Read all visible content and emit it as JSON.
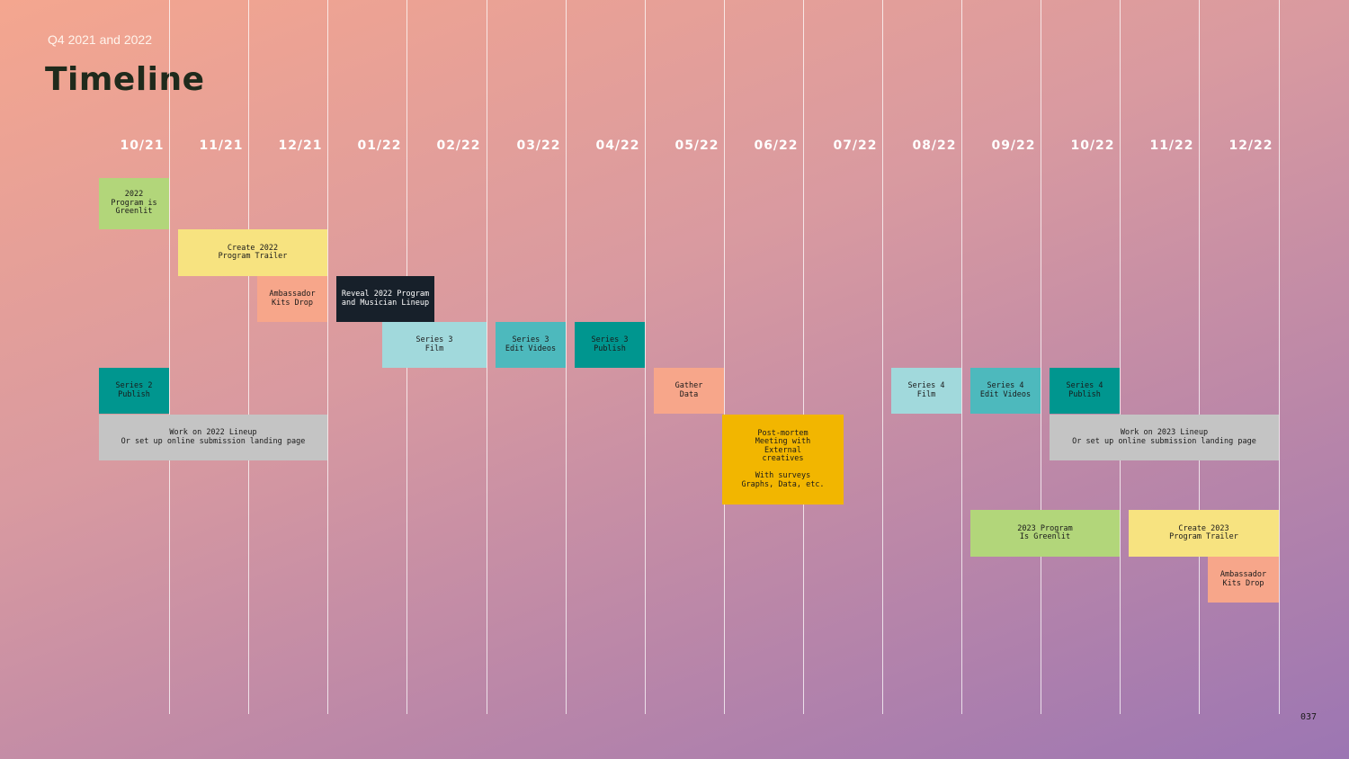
{
  "header": {
    "subtitle": "Q4 2021 and 2022",
    "title": "Timeline"
  },
  "months": [
    "10/21",
    "11/21",
    "12/21",
    "01/22",
    "02/22",
    "03/22",
    "04/22",
    "05/22",
    "06/22",
    "07/22",
    "08/22",
    "09/22",
    "10/22",
    "11/22",
    "12/22"
  ],
  "tasks": [
    {
      "label": "2022\nProgram is\nGreenlit",
      "color": "#b2d67a",
      "text_color": "#1a1a1a",
      "start_month": "10/21",
      "end_month": "10/21"
    },
    {
      "label": "Create 2022\nProgram Trailer",
      "color": "#f7e380",
      "text_color": "#1a1a1a",
      "start_month": "11/21",
      "end_month": "12/21"
    },
    {
      "label": "Ambassador\nKits Drop",
      "color": "#f7a68a",
      "text_color": "#1a1a1a",
      "start_month": "12/21",
      "end_month": "12/21"
    },
    {
      "label": "Reveal 2022 Program\nand Musician Lineup",
      "color": "#17202a",
      "text_color": "#ffffff",
      "start_month": "01/22",
      "end_month": "02/22"
    },
    {
      "label": "Series 3\nFilm",
      "color": "#a1d9dc",
      "text_color": "#1a1a1a",
      "start_month": "02/22",
      "end_month": "02/22"
    },
    {
      "label": "Series 3\nEdit Videos",
      "color": "#4db9bd",
      "text_color": "#1a1a1a",
      "start_month": "03/22",
      "end_month": "03/22"
    },
    {
      "label": "Series 3\nPublish",
      "color": "#00968f",
      "text_color": "#1a1a1a",
      "start_month": "04/22",
      "end_month": "04/22"
    },
    {
      "label": "Series 2\nPublish",
      "color": "#00968f",
      "text_color": "#1a1a1a",
      "start_month": "10/21",
      "end_month": "10/21"
    },
    {
      "label": "Gather\nData",
      "color": "#f7a68a",
      "text_color": "#1a1a1a",
      "start_month": "05/22",
      "end_month": "05/22"
    },
    {
      "label": "Series 4\nFilm",
      "color": "#a1d9dc",
      "text_color": "#1a1a1a",
      "start_month": "08/22",
      "end_month": "08/22"
    },
    {
      "label": "Series 4\nEdit Videos",
      "color": "#4db9bd",
      "text_color": "#1a1a1a",
      "start_month": "09/22",
      "end_month": "09/22"
    },
    {
      "label": "Series 4\nPublish",
      "color": "#00968f",
      "text_color": "#1a1a1a",
      "start_month": "10/22",
      "end_month": "10/22"
    },
    {
      "label": "Work on 2022 Lineup\nOr set up online submission landing page",
      "color": "#c4c4c4",
      "text_color": "#1a1a1a",
      "start_month": "10/21",
      "end_month": "12/21"
    },
    {
      "label": "Post-mortem\nMeeting with\nExternal\ncreatives\n\nWith surveys\nGraphs, Data, etc.",
      "color": "#f2b600",
      "text_color": "#1a1a1a",
      "start_month": "06/22",
      "end_month": "07/22"
    },
    {
      "label": "Work on 2023 Lineup\nOr set up online submission landing page",
      "color": "#c4c4c4",
      "text_color": "#1a1a1a",
      "start_month": "10/22",
      "end_month": "12/22"
    },
    {
      "label": "2023 Program\nIs Greenlit",
      "color": "#b2d67a",
      "text_color": "#1a1a1a",
      "start_month": "09/22",
      "end_month": "10/22"
    },
    {
      "label": "Create 2023\nProgram Trailer",
      "color": "#f7e380",
      "text_color": "#1a1a1a",
      "start_month": "11/22",
      "end_month": "12/22"
    },
    {
      "label": "Ambassador\nKits Drop",
      "color": "#f7a68a",
      "text_color": "#1a1a1a",
      "start_month": "12/22",
      "end_month": "12/22"
    }
  ],
  "footer": {
    "page_number": "037"
  }
}
